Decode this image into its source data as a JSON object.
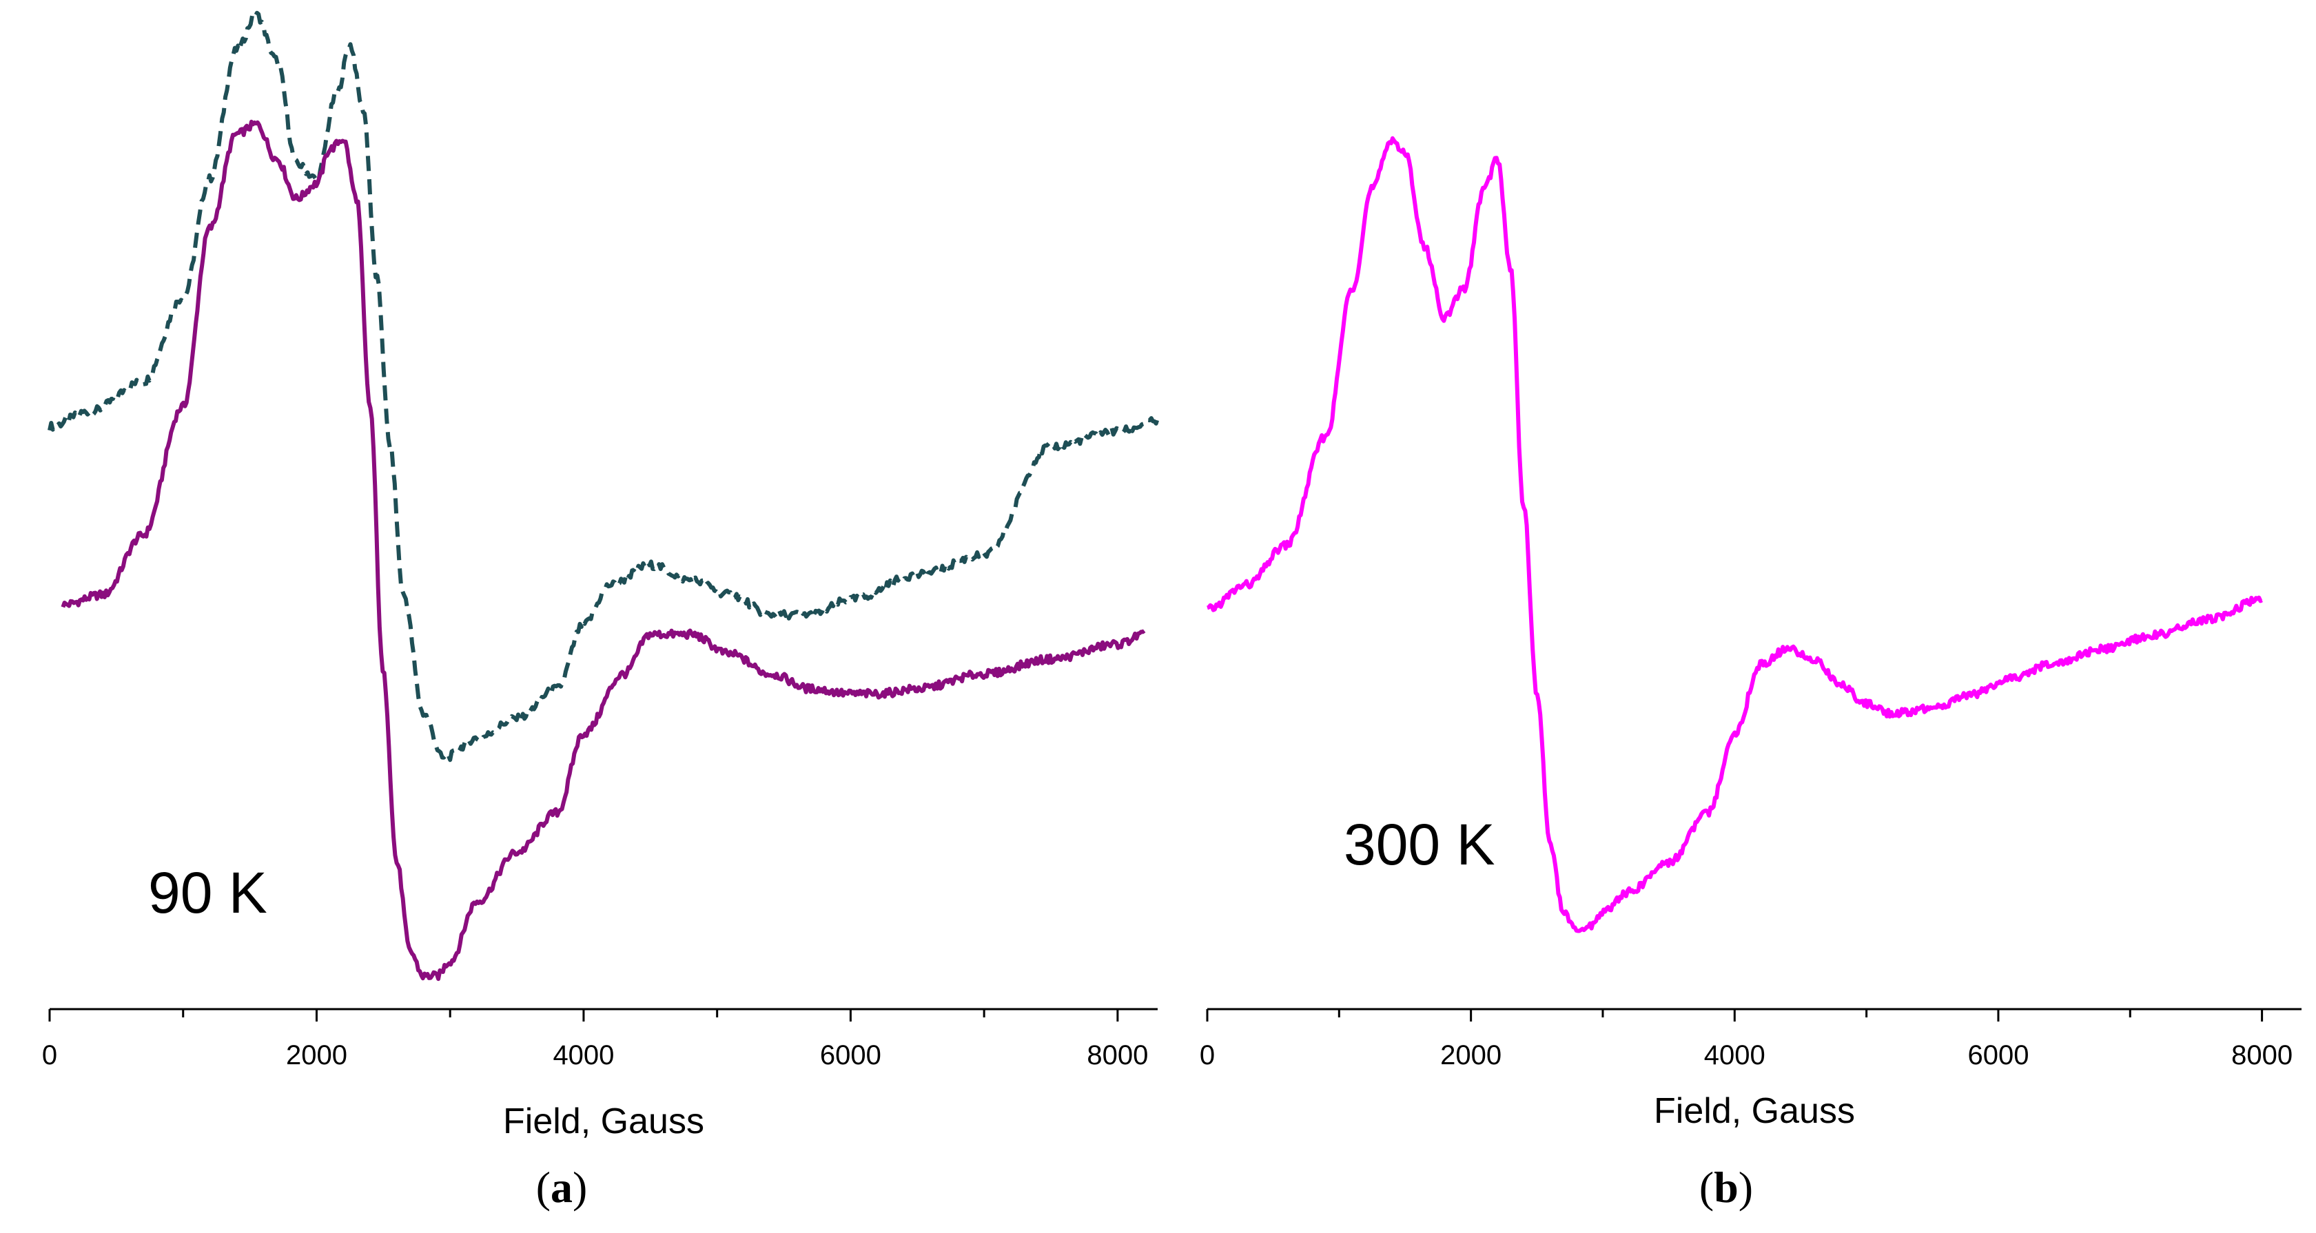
{
  "chart_data": [
    {
      "type": "line",
      "panel_label": "a",
      "annotation": "90 K",
      "xlabel": "Field, Gauss",
      "ylabel": "",
      "xlim": [
        0,
        8300
      ],
      "ylim": [
        0,
        1
      ],
      "xticks": [
        0,
        2000,
        4000,
        6000,
        8000
      ],
      "y_axis_shown": false,
      "grid": false,
      "series": [
        {
          "color": "#1e4e55",
          "dash": "dashed",
          "x": [
            0,
            300,
            700,
            1000,
            1200,
            1400,
            1550,
            1700,
            1850,
            2000,
            2150,
            2250,
            2350,
            2450,
            2550,
            2650,
            2800,
            2950,
            3200,
            3500,
            3800,
            4000,
            4200,
            4500,
            4800,
            5100,
            5400,
            5700,
            6000,
            6500,
            7000,
            7500,
            8000,
            8300
          ],
          "y": [
            0.58,
            0.595,
            0.625,
            0.71,
            0.83,
            0.96,
            0.995,
            0.95,
            0.845,
            0.83,
            0.915,
            0.965,
            0.9,
            0.73,
            0.56,
            0.41,
            0.29,
            0.245,
            0.265,
            0.285,
            0.315,
            0.38,
            0.42,
            0.44,
            0.425,
            0.41,
            0.39,
            0.39,
            0.405,
            0.43,
            0.45,
            0.56,
            0.575,
            0.585
          ]
        },
        {
          "color": "#8b0d7e",
          "dash": "solid",
          "x": [
            100,
            400,
            700,
            1000,
            1200,
            1400,
            1550,
            1700,
            1850,
            2000,
            2100,
            2200,
            2300,
            2400,
            2500,
            2600,
            2700,
            2800,
            2900,
            3000,
            3200,
            3500,
            3800,
            4000,
            4300,
            4500,
            4800,
            5100,
            5400,
            5700,
            6000,
            6200,
            6500,
            7000,
            7500,
            8000,
            8200
          ],
          "y": [
            0.4,
            0.41,
            0.47,
            0.6,
            0.78,
            0.875,
            0.885,
            0.85,
            0.81,
            0.825,
            0.86,
            0.87,
            0.81,
            0.6,
            0.33,
            0.14,
            0.05,
            0.025,
            0.025,
            0.04,
            0.1,
            0.15,
            0.19,
            0.27,
            0.33,
            0.37,
            0.37,
            0.35,
            0.33,
            0.315,
            0.31,
            0.31,
            0.315,
            0.33,
            0.345,
            0.36,
            0.37
          ]
        }
      ]
    },
    {
      "type": "line",
      "panel_label": "b",
      "annotation": "300  K",
      "xlabel": "Field, Gauss",
      "ylabel": "",
      "xlim": [
        0,
        8300
      ],
      "ylim": [
        0,
        1
      ],
      "xticks": [
        0,
        2000,
        4000,
        6000,
        8000
      ],
      "y_axis_shown": false,
      "grid": false,
      "series": [
        {
          "color": "#ff00ff",
          "dash": "solid",
          "x": [
            0,
            300,
            600,
            900,
            1100,
            1250,
            1400,
            1500,
            1650,
            1800,
            1950,
            2100,
            2200,
            2300,
            2400,
            2500,
            2600,
            2700,
            2800,
            2900,
            3000,
            3200,
            3500,
            3800,
            4000,
            4200,
            4400,
            4600,
            4800,
            5000,
            5200,
            5500,
            5800,
            6100,
            6400,
            6800,
            7200,
            7600,
            8000
          ],
          "y": [
            0.395,
            0.42,
            0.46,
            0.57,
            0.72,
            0.82,
            0.87,
            0.855,
            0.76,
            0.69,
            0.72,
            0.82,
            0.85,
            0.74,
            0.5,
            0.31,
            0.16,
            0.09,
            0.07,
            0.075,
            0.09,
            0.11,
            0.14,
            0.19,
            0.27,
            0.34,
            0.355,
            0.345,
            0.32,
            0.3,
            0.29,
            0.295,
            0.31,
            0.325,
            0.34,
            0.355,
            0.37,
            0.385,
            0.405
          ]
        }
      ]
    }
  ]
}
